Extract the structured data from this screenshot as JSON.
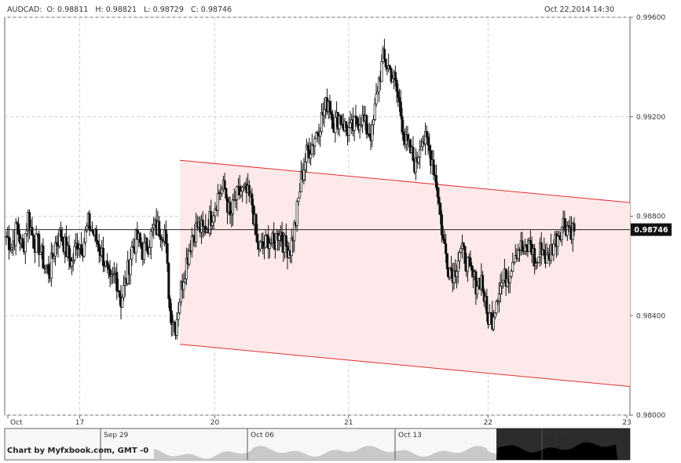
{
  "header": {
    "symbol": "AUDCAD:",
    "open": "O: 0.98811",
    "high": "H: 0.98821",
    "low": "L: 0.98729",
    "close": "C: 0.98746",
    "datetime": "Oct 22,2014 14:30"
  },
  "chart_data": {
    "type": "candlestick",
    "symbol": "AUDCAD",
    "x_tick_labels": [
      "Oct",
      "17",
      "20",
      "21",
      "22",
      "23"
    ],
    "y_tick_labels": [
      "0.99600",
      "0.99200",
      "0.98800",
      "0.98400",
      "0.98000"
    ],
    "ylim": [
      0.98,
      0.996
    ],
    "grid": true,
    "current_price": 0.98746,
    "current_price_label": "0.98746",
    "channel": {
      "upper": [
        [
          0.28,
          0.99025
        ],
        [
          1.0,
          0.98855
        ]
      ],
      "lower": [
        [
          0.28,
          0.98285
        ],
        [
          1.0,
          0.98115
        ]
      ],
      "color": "#e03030",
      "fill": "#fde9e9"
    },
    "closes": [
      0.9872,
      0.9868,
      0.9876,
      0.9866,
      0.988,
      0.987,
      0.9868,
      0.986,
      0.9858,
      0.9869,
      0.9873,
      0.9866,
      0.9861,
      0.987,
      0.9868,
      0.9877,
      0.9873,
      0.9868,
      0.9862,
      0.9852,
      0.9857,
      0.9846,
      0.9855,
      0.9867,
      0.9871,
      0.9866,
      0.9869,
      0.9875,
      0.9875,
      0.9874,
      0.9842,
      0.9836,
      0.9851,
      0.9862,
      0.9872,
      0.9876,
      0.9874,
      0.9877,
      0.9883,
      0.989,
      0.9891,
      0.9879,
      0.9887,
      0.989,
      0.9889,
      0.9885,
      0.9868,
      0.9867,
      0.9871,
      0.9868,
      0.9875,
      0.9868,
      0.9867,
      0.9878,
      0.9895,
      0.9905,
      0.9909,
      0.9915,
      0.9921,
      0.9927,
      0.9917,
      0.992,
      0.9916,
      0.9914,
      0.9917,
      0.992,
      0.9915,
      0.9913,
      0.9932,
      0.9943,
      0.994,
      0.9935,
      0.9925,
      0.991,
      0.9906,
      0.99,
      0.9912,
      0.9909,
      0.9903,
      0.989,
      0.987,
      0.986,
      0.9857,
      0.9866,
      0.9864,
      0.9857,
      0.9853,
      0.9855,
      0.984,
      0.9839,
      0.985,
      0.9854,
      0.9857,
      0.9865,
      0.9868,
      0.9865,
      0.9869,
      0.986,
      0.9868,
      0.9862,
      0.9868,
      0.9873,
      0.9877,
      0.9876,
      0.9874
    ],
    "navigator": {
      "labels": [
        "Sep 29",
        "Oct 06",
        "Oct 13",
        "Oct 20"
      ]
    }
  },
  "footer": {
    "credit": "Chart by Myfxbook.com, GMT -0"
  }
}
